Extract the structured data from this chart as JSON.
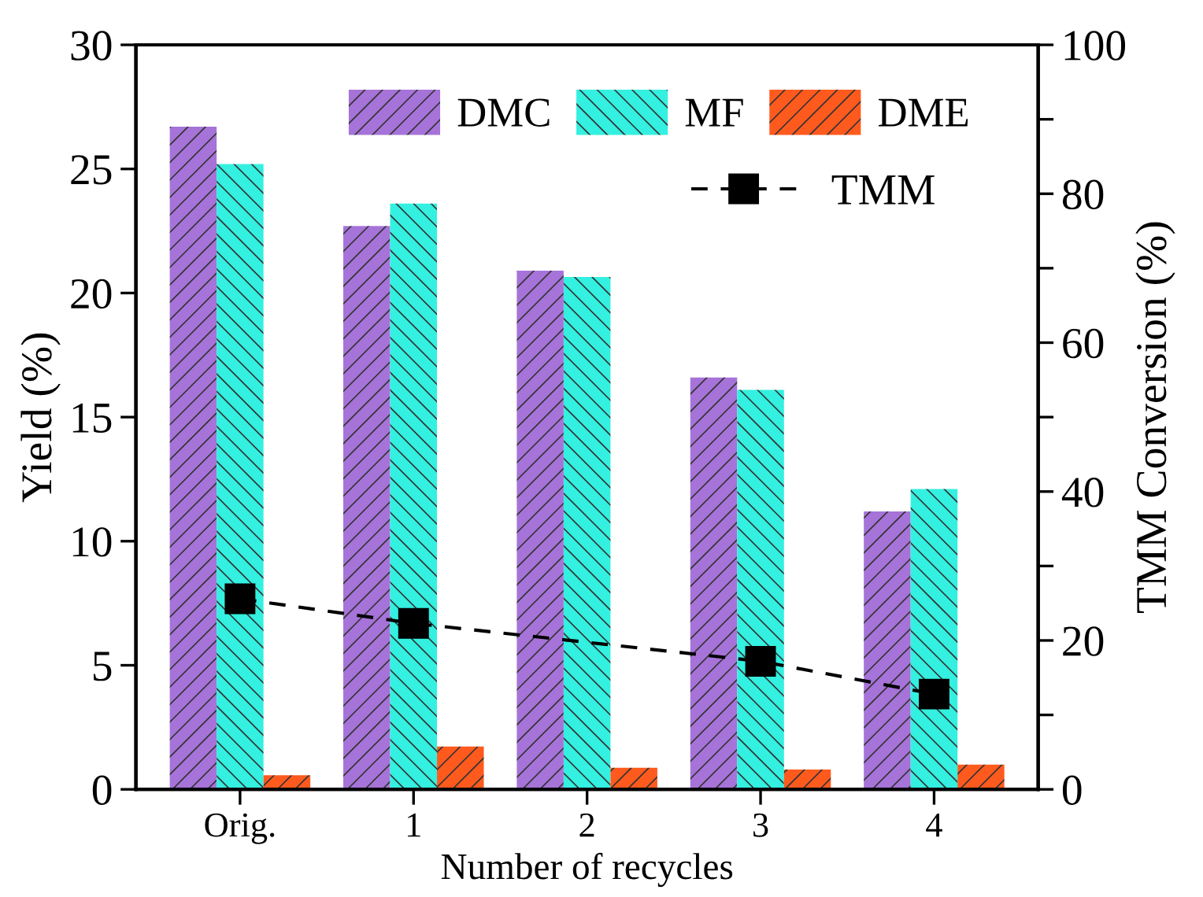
{
  "chart_data": {
    "type": "bar",
    "xlabel": "Number of recycles",
    "ylabel": "Yield (%)",
    "y2label": "TMM Conversion (%)",
    "categories": [
      "Orig.",
      "1",
      "2",
      "3",
      "4"
    ],
    "series": [
      {
        "name": "DMC",
        "color": "#a673d9",
        "values": [
          26.7,
          22.7,
          20.9,
          16.6,
          11.2
        ]
      },
      {
        "name": "MF",
        "color": "#33f0e0",
        "values": [
          25.2,
          23.6,
          20.65,
          16.1,
          12.1
        ]
      },
      {
        "name": "DME",
        "color": "#ff5a1e",
        "values": [
          0.57,
          1.73,
          0.87,
          0.8,
          1.0
        ]
      },
      {
        "name": "TMM",
        "type": "line",
        "axis": "y2",
        "color": "#000000",
        "marker": "square",
        "line_style": "dashed",
        "values": [
          25.6,
          22.3,
          null,
          17.2,
          12.8
        ]
      }
    ],
    "ylim": [
      0,
      30
    ],
    "yticks": [
      0,
      5,
      10,
      15,
      20,
      25,
      30
    ],
    "y2lim": [
      0,
      100
    ],
    "y2ticks": [
      0,
      {
        "value": 10,
        "label": null
      },
      20,
      {
        "value": 30,
        "label": null
      },
      40,
      {
        "value": 50,
        "label": null
      },
      60,
      {
        "value": 70,
        "label": null
      },
      80,
      {
        "value": 90,
        "label": null
      },
      100
    ],
    "grid": false,
    "legend": "top right"
  }
}
